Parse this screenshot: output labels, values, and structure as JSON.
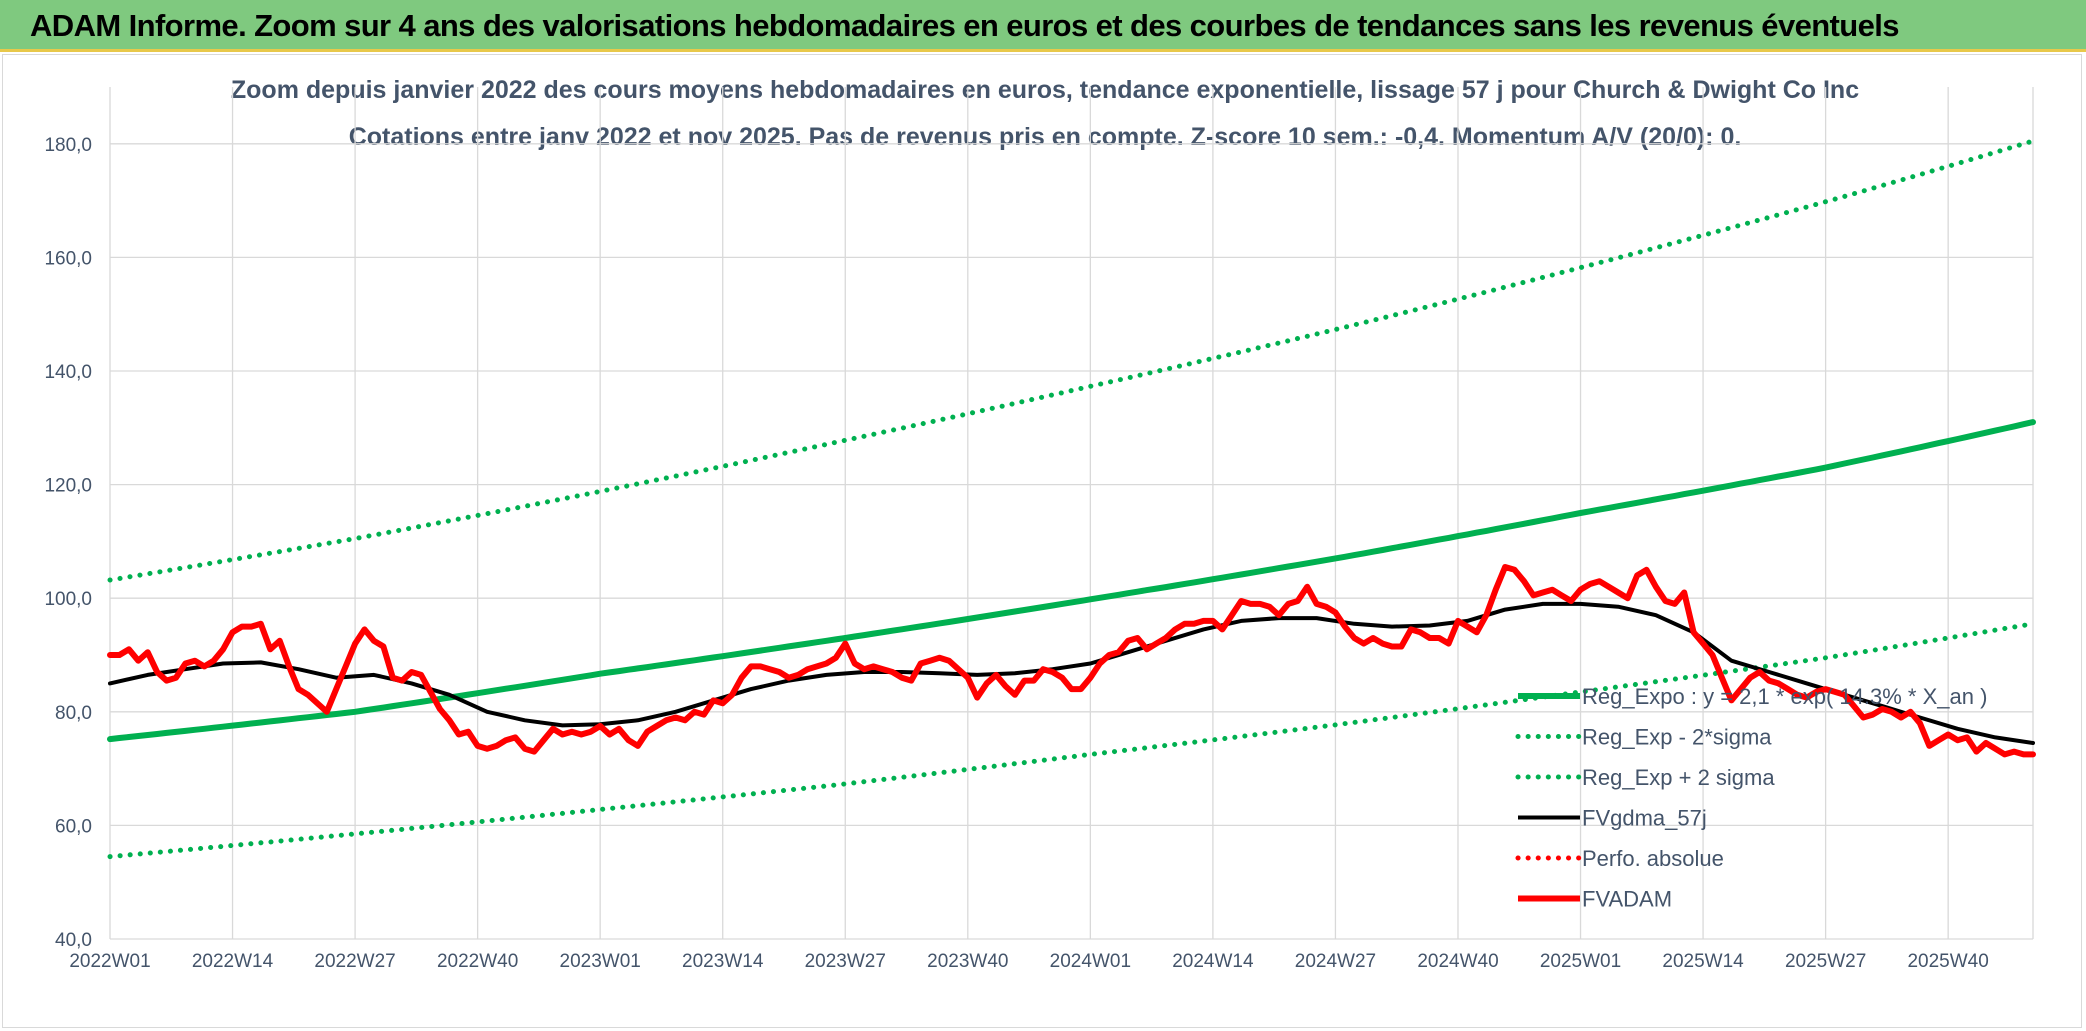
{
  "banner": {
    "title": "ADAM Informe. Zoom sur 4 ans des valorisations hebdomadaires en euros et des courbes de tendances sans les revenus éventuels"
  },
  "colors": {
    "banner_bg": "#7fc97f",
    "banner_border": "#e8c84a",
    "trend": "#00b050",
    "smooth": "#000000",
    "price": "#ff0000",
    "text": "#44546a",
    "grid": "#d9d9d9"
  },
  "chart_data": {
    "type": "line",
    "title_line1": "Zoom depuis janvier 2022 des cours moyens hebdomadaires en euros, tendance exponentielle, lissage 57 j pour Church & Dwight Co Inc",
    "title_line2": "Cotations entre janv 2022 et nov 2025. Pas de revenus pris en compte. Z-score 10 sem.: -0,4. Momentum A/V (20/0): 0.",
    "ylim": [
      40,
      190
    ],
    "yticks": [
      40,
      60,
      80,
      100,
      120,
      140,
      160,
      180
    ],
    "ytick_labels": [
      "40,0",
      "60,0",
      "80,0",
      "100,0",
      "120,0",
      "140,0",
      "160,0",
      "180,0"
    ],
    "grid": true,
    "weeks_total": 204,
    "xticks": [
      {
        "label": "2022W01",
        "week": 0
      },
      {
        "label": "2022W14",
        "week": 13
      },
      {
        "label": "2022W27",
        "week": 26
      },
      {
        "label": "2022W40",
        "week": 39
      },
      {
        "label": "2023W01",
        "week": 52
      },
      {
        "label": "2023W14",
        "week": 65
      },
      {
        "label": "2023W27",
        "week": 78
      },
      {
        "label": "2023W40",
        "week": 91
      },
      {
        "label": "2024W01",
        "week": 104
      },
      {
        "label": "2024W14",
        "week": 117
      },
      {
        "label": "2024W27",
        "week": 130
      },
      {
        "label": "2024W40",
        "week": 143
      },
      {
        "label": "2025W01",
        "week": 156
      },
      {
        "label": "2025W14",
        "week": 169
      },
      {
        "label": "2025W27",
        "week": 182
      },
      {
        "label": "2025W40",
        "week": 195
      }
    ],
    "legend_position": "right",
    "series": [
      {
        "name": "Reg_Expo : y = 2,1 * exp( 14.3% *  X_an )",
        "style": "solid-thick",
        "color": "#00b050",
        "points": [
          [
            0,
            75.2
          ],
          [
            26,
            80.0
          ],
          [
            52,
            86.7
          ],
          [
            78,
            93.0
          ],
          [
            104,
            99.8
          ],
          [
            130,
            107.0
          ],
          [
            156,
            115.0
          ],
          [
            182,
            123.0
          ],
          [
            204,
            131.0
          ]
        ]
      },
      {
        "name": "Reg_Exp - 2*sigma",
        "style": "dotted",
        "color": "#00b050",
        "points": [
          [
            0,
            54.5
          ],
          [
            26,
            58.5
          ],
          [
            52,
            62.8
          ],
          [
            78,
            67.3
          ],
          [
            104,
            72.5
          ],
          [
            130,
            77.7
          ],
          [
            156,
            83.5
          ],
          [
            182,
            89.5
          ],
          [
            204,
            95.5
          ]
        ]
      },
      {
        "name": "Reg_Exp + 2 sigma",
        "style": "dotted",
        "color": "#00b050",
        "points": [
          [
            0,
            103.2
          ],
          [
            26,
            110.5
          ],
          [
            52,
            118.8
          ],
          [
            78,
            127.8
          ],
          [
            104,
            137.3
          ],
          [
            130,
            147.3
          ],
          [
            156,
            158.2
          ],
          [
            182,
            169.8
          ],
          [
            204,
            180.5
          ]
        ]
      },
      {
        "name": "FVgdma_57j",
        "style": "solid",
        "color": "#000000",
        "points": [
          [
            0,
            85.0
          ],
          [
            4,
            86.5
          ],
          [
            8,
            87.5
          ],
          [
            12,
            88.5
          ],
          [
            16,
            88.7
          ],
          [
            20,
            87.5
          ],
          [
            24,
            86.0
          ],
          [
            28,
            86.5
          ],
          [
            32,
            85.0
          ],
          [
            36,
            83.0
          ],
          [
            40,
            80.0
          ],
          [
            44,
            78.5
          ],
          [
            48,
            77.6
          ],
          [
            52,
            77.8
          ],
          [
            56,
            78.5
          ],
          [
            60,
            80.0
          ],
          [
            64,
            82.0
          ],
          [
            68,
            84.0
          ],
          [
            72,
            85.5
          ],
          [
            76,
            86.5
          ],
          [
            80,
            87.0
          ],
          [
            84,
            87.0
          ],
          [
            88,
            86.8
          ],
          [
            92,
            86.5
          ],
          [
            96,
            86.8
          ],
          [
            100,
            87.5
          ],
          [
            104,
            88.5
          ],
          [
            108,
            90.5
          ],
          [
            112,
            92.5
          ],
          [
            116,
            94.5
          ],
          [
            120,
            96.0
          ],
          [
            124,
            96.5
          ],
          [
            128,
            96.5
          ],
          [
            132,
            95.5
          ],
          [
            136,
            95.0
          ],
          [
            140,
            95.2
          ],
          [
            144,
            96.0
          ],
          [
            148,
            98.0
          ],
          [
            152,
            99.0
          ],
          [
            156,
            99.0
          ],
          [
            160,
            98.5
          ],
          [
            164,
            97.0
          ],
          [
            168,
            94.0
          ],
          [
            172,
            89.0
          ],
          [
            176,
            87.0
          ],
          [
            180,
            85.0
          ],
          [
            184,
            83.0
          ],
          [
            188,
            81.0
          ],
          [
            192,
            79.0
          ],
          [
            196,
            77.0
          ],
          [
            200,
            75.5
          ],
          [
            204,
            74.5
          ]
        ]
      },
      {
        "name": "Perfo. absolue",
        "style": "dotted",
        "color": "#ff0000",
        "points": []
      },
      {
        "name": "FVADAM",
        "style": "solid-thick",
        "color": "#ff0000",
        "points": [
          [
            0,
            90
          ],
          [
            1,
            90
          ],
          [
            2,
            91
          ],
          [
            3,
            89
          ],
          [
            4,
            90.5
          ],
          [
            5,
            87
          ],
          [
            6,
            85.5
          ],
          [
            7,
            86
          ],
          [
            8,
            88.5
          ],
          [
            9,
            89
          ],
          [
            10,
            88
          ],
          [
            11,
            89
          ],
          [
            12,
            91
          ],
          [
            13,
            94
          ],
          [
            14,
            95
          ],
          [
            15,
            95
          ],
          [
            16,
            95.5
          ],
          [
            17,
            91
          ],
          [
            18,
            92.5
          ],
          [
            19,
            88
          ],
          [
            20,
            84
          ],
          [
            21,
            83
          ],
          [
            22,
            81.5
          ],
          [
            23,
            80
          ],
          [
            24,
            84
          ],
          [
            25,
            88
          ],
          [
            26,
            92
          ],
          [
            27,
            94.5
          ],
          [
            28,
            92.5
          ],
          [
            29,
            91.5
          ],
          [
            30,
            86
          ],
          [
            31,
            85.5
          ],
          [
            32,
            87
          ],
          [
            33,
            86.5
          ],
          [
            34,
            83.5
          ],
          [
            35,
            80.5
          ],
          [
            36,
            78.5
          ],
          [
            37,
            76
          ],
          [
            38,
            76.5
          ],
          [
            39,
            74
          ],
          [
            40,
            73.5
          ],
          [
            41,
            74
          ],
          [
            42,
            75
          ],
          [
            43,
            75.5
          ],
          [
            44,
            73.5
          ],
          [
            45,
            73
          ],
          [
            46,
            75
          ],
          [
            47,
            77
          ],
          [
            48,
            76
          ],
          [
            49,
            76.5
          ],
          [
            50,
            76
          ],
          [
            51,
            76.5
          ],
          [
            52,
            77.5
          ],
          [
            53,
            76
          ],
          [
            54,
            77
          ],
          [
            55,
            75
          ],
          [
            56,
            74
          ],
          [
            57,
            76.5
          ],
          [
            58,
            77.5
          ],
          [
            59,
            78.5
          ],
          [
            60,
            79
          ],
          [
            61,
            78.5
          ],
          [
            62,
            80
          ],
          [
            63,
            79.5
          ],
          [
            64,
            82
          ],
          [
            65,
            81.5
          ],
          [
            66,
            83
          ],
          [
            67,
            86
          ],
          [
            68,
            88
          ],
          [
            69,
            88
          ],
          [
            70,
            87.5
          ],
          [
            71,
            87
          ],
          [
            72,
            86
          ],
          [
            73,
            86.5
          ],
          [
            74,
            87.5
          ],
          [
            75,
            88
          ],
          [
            76,
            88.5
          ],
          [
            77,
            89.5
          ],
          [
            78,
            92
          ],
          [
            79,
            88.5
          ],
          [
            80,
            87.5
          ],
          [
            81,
            88
          ],
          [
            82,
            87.5
          ],
          [
            83,
            87
          ],
          [
            84,
            86
          ],
          [
            85,
            85.5
          ],
          [
            86,
            88.5
          ],
          [
            87,
            89
          ],
          [
            88,
            89.5
          ],
          [
            89,
            89
          ],
          [
            90,
            87.5
          ],
          [
            91,
            86
          ],
          [
            92,
            82.5
          ],
          [
            93,
            85
          ],
          [
            94,
            86.5
          ],
          [
            95,
            84.5
          ],
          [
            96,
            83
          ],
          [
            97,
            85.5
          ],
          [
            98,
            85.5
          ],
          [
            99,
            87.5
          ],
          [
            100,
            87
          ],
          [
            101,
            86
          ],
          [
            102,
            84
          ],
          [
            103,
            84
          ],
          [
            104,
            86
          ],
          [
            105,
            88.5
          ],
          [
            106,
            90
          ],
          [
            107,
            90.5
          ],
          [
            108,
            92.5
          ],
          [
            109,
            93
          ],
          [
            110,
            91
          ],
          [
            111,
            92
          ],
          [
            112,
            93
          ],
          [
            113,
            94.5
          ],
          [
            114,
            95.5
          ],
          [
            115,
            95.5
          ],
          [
            116,
            96
          ],
          [
            117,
            96
          ],
          [
            118,
            94.5
          ],
          [
            119,
            97
          ],
          [
            120,
            99.5
          ],
          [
            121,
            99
          ],
          [
            122,
            99
          ],
          [
            123,
            98.5
          ],
          [
            124,
            97
          ],
          [
            125,
            99
          ],
          [
            126,
            99.5
          ],
          [
            127,
            102
          ],
          [
            128,
            99
          ],
          [
            129,
            98.5
          ],
          [
            130,
            97.5
          ],
          [
            131,
            95
          ],
          [
            132,
            93
          ],
          [
            133,
            92
          ],
          [
            134,
            93
          ],
          [
            135,
            92
          ],
          [
            136,
            91.5
          ],
          [
            137,
            91.5
          ],
          [
            138,
            94.5
          ],
          [
            139,
            94
          ],
          [
            140,
            93
          ],
          [
            141,
            93
          ],
          [
            142,
            92
          ],
          [
            143,
            96
          ],
          [
            144,
            95
          ],
          [
            145,
            94
          ],
          [
            146,
            97
          ],
          [
            147,
            101.5
          ],
          [
            148,
            105.5
          ],
          [
            149,
            105
          ],
          [
            150,
            103
          ],
          [
            151,
            100.5
          ],
          [
            152,
            101
          ],
          [
            153,
            101.5
          ],
          [
            154,
            100.5
          ],
          [
            155,
            99.5
          ],
          [
            156,
            101.5
          ],
          [
            157,
            102.5
          ],
          [
            158,
            103
          ],
          [
            159,
            102
          ],
          [
            160,
            101
          ],
          [
            161,
            100
          ],
          [
            162,
            104
          ],
          [
            163,
            105
          ],
          [
            164,
            102
          ],
          [
            165,
            99.5
          ],
          [
            166,
            99
          ],
          [
            167,
            101
          ],
          [
            168,
            94
          ],
          [
            169,
            92
          ],
          [
            170,
            90
          ],
          [
            171,
            86
          ],
          [
            172,
            82
          ],
          [
            173,
            84
          ],
          [
            174,
            86
          ],
          [
            175,
            87
          ],
          [
            176,
            85.5
          ],
          [
            177,
            85
          ],
          [
            178,
            84
          ],
          [
            179,
            83
          ],
          [
            180,
            82.5
          ],
          [
            181,
            83.5
          ],
          [
            182,
            84
          ],
          [
            183,
            83.5
          ],
          [
            184,
            83
          ],
          [
            185,
            81
          ],
          [
            186,
            79
          ],
          [
            187,
            79.5
          ],
          [
            188,
            80.5
          ],
          [
            189,
            80
          ],
          [
            190,
            79
          ],
          [
            191,
            80
          ],
          [
            192,
            78
          ],
          [
            193,
            74
          ],
          [
            194,
            75
          ],
          [
            195,
            76
          ],
          [
            196,
            75
          ],
          [
            197,
            75.5
          ],
          [
            198,
            73
          ],
          [
            199,
            74.5
          ],
          [
            200,
            73.5
          ],
          [
            201,
            72.5
          ],
          [
            202,
            73
          ],
          [
            203,
            72.5
          ],
          [
            204,
            72.5
          ]
        ]
      }
    ]
  }
}
